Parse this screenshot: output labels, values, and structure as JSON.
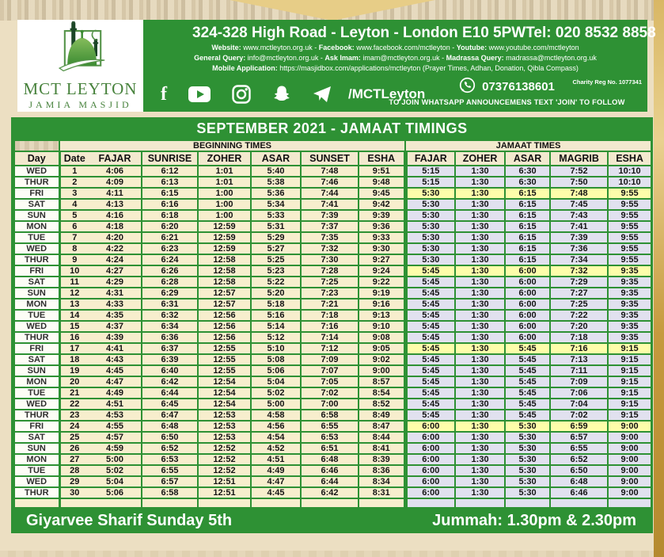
{
  "colors": {
    "green": "#2e9134",
    "cream_cell": "#f7eecd",
    "jamaat_cell": "#e1e1ef",
    "friday_highlight": "#fdfdaa",
    "gold_edge": "#c59a3e"
  },
  "logo": {
    "title": "MCT LEYTON",
    "subtitle": "JAMIA MASJID"
  },
  "header": {
    "address": "324-328 High Road - Leyton - London E10 5PW",
    "tel": "Tel: 020 8532 8858",
    "contact_lines": [
      [
        {
          "b": "Website:"
        },
        {
          "t": "www.mctleyton.org.uk - "
        },
        {
          "b": "Facebook:"
        },
        {
          "t": "www.facebook.com/mctleyton - "
        },
        {
          "b": "Youtube:"
        },
        {
          "t": "www.youtube.com/mctleyton"
        }
      ],
      [
        {
          "b": "General Query:"
        },
        {
          "t": "info@mctleyton.org.uk - "
        },
        {
          "b": "Ask Imam:"
        },
        {
          "t": "imam@mctleyton.org.uk - "
        },
        {
          "b": "Madrassa Query:"
        },
        {
          "t": "madrassa@mctleyton.org.uk"
        }
      ],
      [
        {
          "b": "Mobile Application:"
        },
        {
          "t": "https://masjidbox.com/applications/mctleyton (Prayer Times, Adhan, Donation, Qibla Compass)"
        }
      ]
    ],
    "social_handle": "/MCTLeyton",
    "social_icons": [
      "facebook-icon",
      "youtube-icon",
      "instagram-icon",
      "snapchat-icon",
      "telegram-icon"
    ],
    "charity_reg": "Charity Reg No. 1077341",
    "whatsapp_number": "07376138601",
    "whatsapp_note": "TO JOIN WHATSAPP ANNOUNCEMENS TEXT 'JOIN' TO FOLLOW"
  },
  "table": {
    "title": "SEPTEMBER 2021  - JAMAAT TIMINGS",
    "group_headers": {
      "beginning": "BEGINNING TIMES",
      "jamaat": "JAMAAT TIMES"
    },
    "columns": [
      "Day",
      "Date",
      "FAJAR",
      "SUNRISE",
      "ZOHER",
      "ASAR",
      "SUNSET",
      "ESHA",
      "FAJAR",
      "ZOHER",
      "ASAR",
      "MAGRIB",
      "ESHA"
    ],
    "rows": [
      {
        "day": "WED",
        "date": "1",
        "beginning": [
          "4:06",
          "6:12",
          "1:01",
          "5:40",
          "7:48",
          "9:51"
        ],
        "jamaat": [
          "5:15",
          "1:30",
          "6:30",
          "7:52",
          "10:10"
        ],
        "highlight": false
      },
      {
        "day": "THUR",
        "date": "2",
        "beginning": [
          "4:09",
          "6:13",
          "1:01",
          "5:38",
          "7:46",
          "9:48"
        ],
        "jamaat": [
          "5:15",
          "1:30",
          "6:30",
          "7:50",
          "10:10"
        ],
        "highlight": false
      },
      {
        "day": "FRI",
        "date": "3",
        "beginning": [
          "4:11",
          "6:15",
          "1:00",
          "5:36",
          "7:44",
          "9:45"
        ],
        "jamaat": [
          "5:30",
          "1:30",
          "6:15",
          "7:48",
          "9:55"
        ],
        "highlight": true
      },
      {
        "day": "SAT",
        "date": "4",
        "beginning": [
          "4:13",
          "6:16",
          "1:00",
          "5:34",
          "7:41",
          "9:42"
        ],
        "jamaat": [
          "5:30",
          "1:30",
          "6:15",
          "7:45",
          "9:55"
        ],
        "highlight": false
      },
      {
        "day": "SUN",
        "date": "5",
        "beginning": [
          "4:16",
          "6:18",
          "1:00",
          "5:33",
          "7:39",
          "9:39"
        ],
        "jamaat": [
          "5:30",
          "1:30",
          "6:15",
          "7:43",
          "9:55"
        ],
        "highlight": false
      },
      {
        "day": "MON",
        "date": "6",
        "beginning": [
          "4:18",
          "6:20",
          "12:59",
          "5:31",
          "7:37",
          "9:36"
        ],
        "jamaat": [
          "5:30",
          "1:30",
          "6:15",
          "7:41",
          "9:55"
        ],
        "highlight": false
      },
      {
        "day": "TUE",
        "date": "7",
        "beginning": [
          "4:20",
          "6:21",
          "12:59",
          "5:29",
          "7:35",
          "9:33"
        ],
        "jamaat": [
          "5:30",
          "1:30",
          "6:15",
          "7:39",
          "9:55"
        ],
        "highlight": false
      },
      {
        "day": "WED",
        "date": "8",
        "beginning": [
          "4:22",
          "6:23",
          "12:59",
          "5:27",
          "7:32",
          "9:30"
        ],
        "jamaat": [
          "5:30",
          "1:30",
          "6:15",
          "7:36",
          "9:55"
        ],
        "highlight": false
      },
      {
        "day": "THUR",
        "date": "9",
        "beginning": [
          "4:24",
          "6:24",
          "12:58",
          "5:25",
          "7:30",
          "9:27"
        ],
        "jamaat": [
          "5:30",
          "1:30",
          "6:15",
          "7:34",
          "9:55"
        ],
        "highlight": false
      },
      {
        "day": "FRI",
        "date": "10",
        "beginning": [
          "4:27",
          "6:26",
          "12:58",
          "5:23",
          "7:28",
          "9:24"
        ],
        "jamaat": [
          "5:45",
          "1:30",
          "6:00",
          "7:32",
          "9:35"
        ],
        "highlight": true
      },
      {
        "day": "SAT",
        "date": "11",
        "beginning": [
          "4:29",
          "6:28",
          "12:58",
          "5:22",
          "7:25",
          "9:22"
        ],
        "jamaat": [
          "5:45",
          "1:30",
          "6:00",
          "7:29",
          "9:35"
        ],
        "highlight": false
      },
      {
        "day": "SUN",
        "date": "12",
        "beginning": [
          "4:31",
          "6:29",
          "12:57",
          "5:20",
          "7:23",
          "9:19"
        ],
        "jamaat": [
          "5:45",
          "1:30",
          "6:00",
          "7:27",
          "9:35"
        ],
        "highlight": false
      },
      {
        "day": "MON",
        "date": "13",
        "beginning": [
          "4:33",
          "6:31",
          "12:57",
          "5:18",
          "7:21",
          "9:16"
        ],
        "jamaat": [
          "5:45",
          "1:30",
          "6:00",
          "7:25",
          "9:35"
        ],
        "highlight": false
      },
      {
        "day": "TUE",
        "date": "14",
        "beginning": [
          "4:35",
          "6:32",
          "12:56",
          "5:16",
          "7:18",
          "9:13"
        ],
        "jamaat": [
          "5:45",
          "1:30",
          "6:00",
          "7:22",
          "9:35"
        ],
        "highlight": false
      },
      {
        "day": "WED",
        "date": "15",
        "beginning": [
          "4:37",
          "6:34",
          "12:56",
          "5:14",
          "7:16",
          "9:10"
        ],
        "jamaat": [
          "5:45",
          "1:30",
          "6:00",
          "7:20",
          "9:35"
        ],
        "highlight": false
      },
      {
        "day": "THUR",
        "date": "16",
        "beginning": [
          "4:39",
          "6:36",
          "12:56",
          "5:12",
          "7:14",
          "9:08"
        ],
        "jamaat": [
          "5:45",
          "1:30",
          "6:00",
          "7:18",
          "9:35"
        ],
        "highlight": false
      },
      {
        "day": "FRI",
        "date": "17",
        "beginning": [
          "4:41",
          "6:37",
          "12:55",
          "5:10",
          "7:12",
          "9:05"
        ],
        "jamaat": [
          "5:45",
          "1:30",
          "5:45",
          "7:16",
          "9:15"
        ],
        "highlight": true
      },
      {
        "day": "SAT",
        "date": "18",
        "beginning": [
          "4:43",
          "6:39",
          "12:55",
          "5:08",
          "7:09",
          "9:02"
        ],
        "jamaat": [
          "5:45",
          "1:30",
          "5:45",
          "7:13",
          "9:15"
        ],
        "highlight": false
      },
      {
        "day": "SUN",
        "date": "19",
        "beginning": [
          "4:45",
          "6:40",
          "12:55",
          "5:06",
          "7:07",
          "9:00"
        ],
        "jamaat": [
          "5:45",
          "1:30",
          "5:45",
          "7:11",
          "9:15"
        ],
        "highlight": false
      },
      {
        "day": "MON",
        "date": "20",
        "beginning": [
          "4:47",
          "6:42",
          "12:54",
          "5:04",
          "7:05",
          "8:57"
        ],
        "jamaat": [
          "5:45",
          "1:30",
          "5:45",
          "7:09",
          "9:15"
        ],
        "highlight": false
      },
      {
        "day": "TUE",
        "date": "21",
        "beginning": [
          "4:49",
          "6:44",
          "12:54",
          "5:02",
          "7:02",
          "8:54"
        ],
        "jamaat": [
          "5:45",
          "1:30",
          "5:45",
          "7:06",
          "9:15"
        ],
        "highlight": false
      },
      {
        "day": "WED",
        "date": "22",
        "beginning": [
          "4:51",
          "6:45",
          "12:54",
          "5:00",
          "7:00",
          "8:52"
        ],
        "jamaat": [
          "5:45",
          "1:30",
          "5:45",
          "7:04",
          "9:15"
        ],
        "highlight": false
      },
      {
        "day": "THUR",
        "date": "23",
        "beginning": [
          "4:53",
          "6:47",
          "12:53",
          "4:58",
          "6:58",
          "8:49"
        ],
        "jamaat": [
          "5:45",
          "1:30",
          "5:45",
          "7:02",
          "9:15"
        ],
        "highlight": false
      },
      {
        "day": "FRI",
        "date": "24",
        "beginning": [
          "4:55",
          "6:48",
          "12:53",
          "4:56",
          "6:55",
          "8:47"
        ],
        "jamaat": [
          "6:00",
          "1:30",
          "5:30",
          "6:59",
          "9:00"
        ],
        "highlight": true
      },
      {
        "day": "SAT",
        "date": "25",
        "beginning": [
          "4:57",
          "6:50",
          "12:53",
          "4:54",
          "6:53",
          "8:44"
        ],
        "jamaat": [
          "6:00",
          "1:30",
          "5:30",
          "6:57",
          "9:00"
        ],
        "highlight": false
      },
      {
        "day": "SUN",
        "date": "26",
        "beginning": [
          "4:59",
          "6:52",
          "12:52",
          "4:52",
          "6:51",
          "8:41"
        ],
        "jamaat": [
          "6:00",
          "1:30",
          "5:30",
          "6:55",
          "9:00"
        ],
        "highlight": false
      },
      {
        "day": "MON",
        "date": "27",
        "beginning": [
          "5:00",
          "6:53",
          "12:52",
          "4:51",
          "6:48",
          "8:39"
        ],
        "jamaat": [
          "6:00",
          "1:30",
          "5:30",
          "6:52",
          "9:00"
        ],
        "highlight": false
      },
      {
        "day": "TUE",
        "date": "28",
        "beginning": [
          "5:02",
          "6:55",
          "12:52",
          "4:49",
          "6:46",
          "8:36"
        ],
        "jamaat": [
          "6:00",
          "1:30",
          "5:30",
          "6:50",
          "9:00"
        ],
        "highlight": false
      },
      {
        "day": "WED",
        "date": "29",
        "beginning": [
          "5:04",
          "6:57",
          "12:51",
          "4:47",
          "6:44",
          "8:34"
        ],
        "jamaat": [
          "6:00",
          "1:30",
          "5:30",
          "6:48",
          "9:00"
        ],
        "highlight": false
      },
      {
        "day": "THUR",
        "date": "30",
        "beginning": [
          "5:06",
          "6:58",
          "12:51",
          "4:45",
          "6:42",
          "8:31"
        ],
        "jamaat": [
          "6:00",
          "1:30",
          "5:30",
          "6:46",
          "9:00"
        ],
        "highlight": false
      }
    ]
  },
  "footer": {
    "left": "Giyarvee Sharif Sunday 5th",
    "right": "Jummah: 1.30pm & 2.30pm"
  }
}
